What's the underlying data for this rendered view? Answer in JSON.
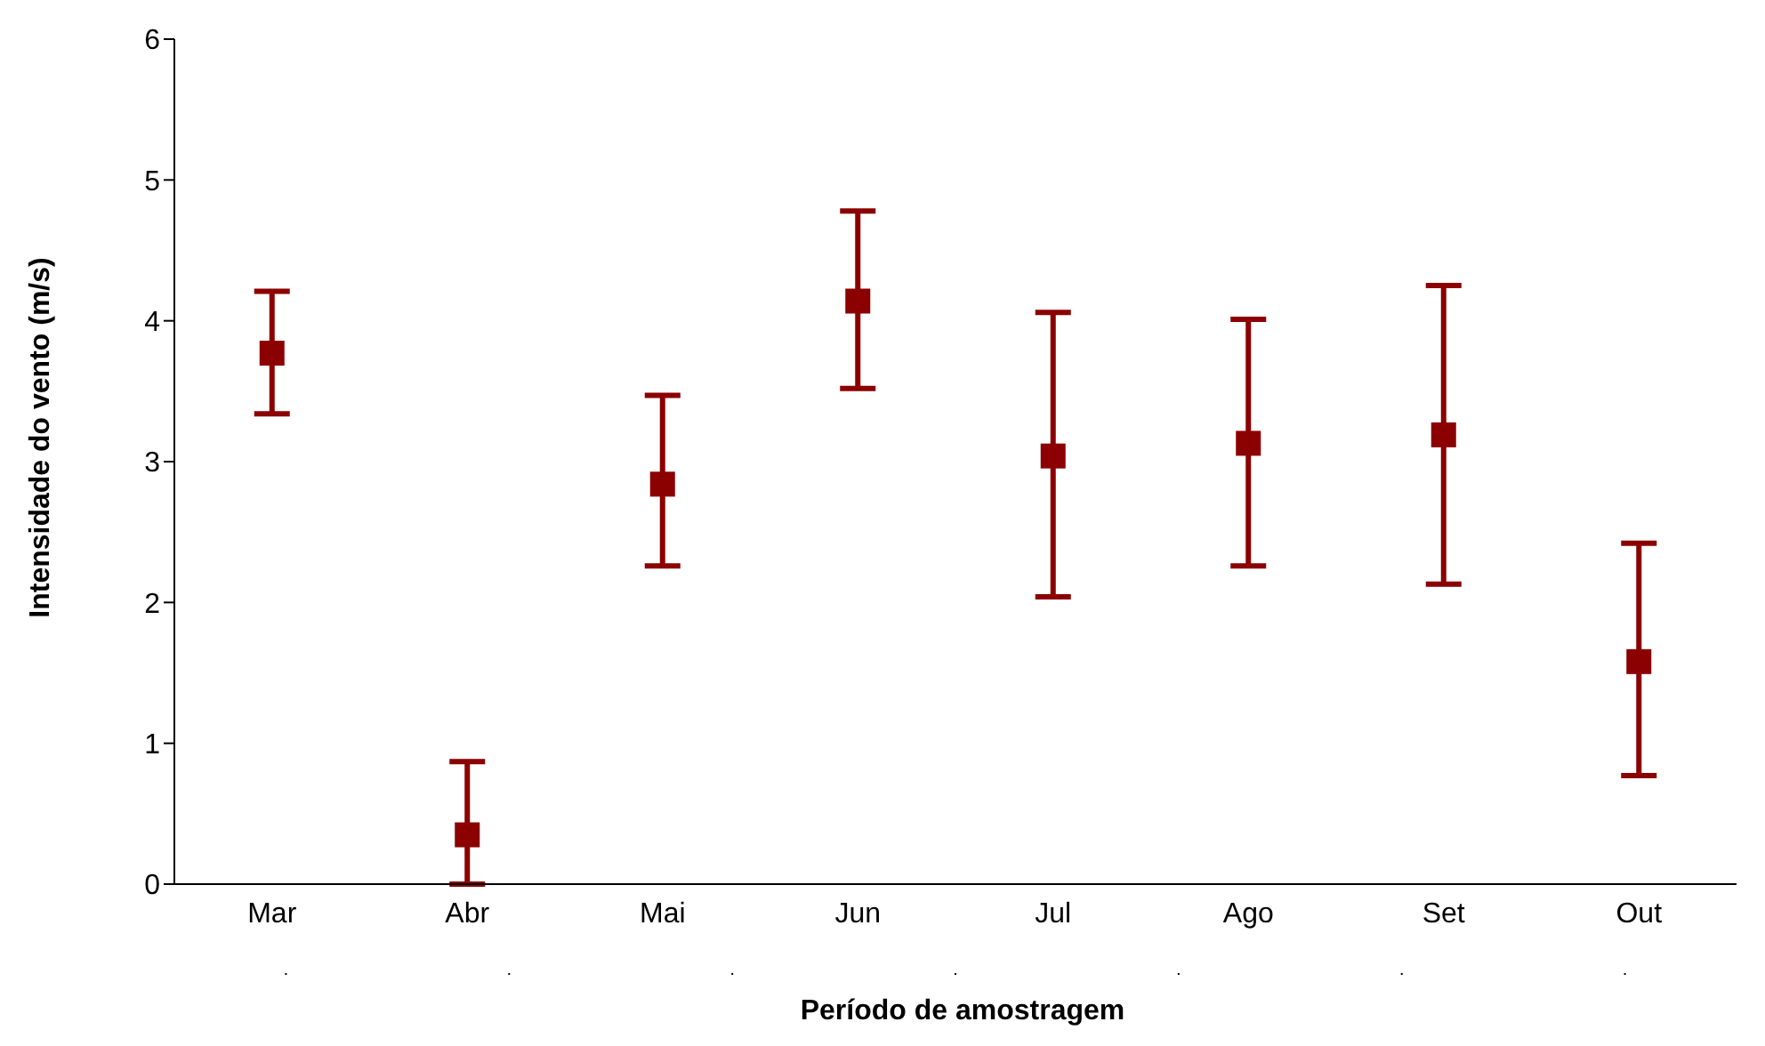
{
  "chart_data": {
    "type": "scatter",
    "xlabel": "Período de amostragem",
    "ylabel": "Intensidade do vento (m/s)",
    "categories": [
      "Mar",
      "Abr",
      "Mai",
      "Jun",
      "Jul",
      "Ago",
      "Set",
      "Out"
    ],
    "series": [
      {
        "color": "#8b0000",
        "values": [
          3.77,
          0.35,
          2.84,
          4.14,
          3.04,
          3.13,
          3.19,
          1.58
        ],
        "errors": [
          [
            3.34,
            4.21
          ],
          [
            0,
            0.87
          ],
          [
            2.26,
            3.47
          ],
          [
            3.52,
            4.78
          ],
          [
            2.04,
            4.06
          ],
          [
            2.26,
            4.01
          ],
          [
            2.13,
            4.25
          ],
          [
            0.77,
            2.42
          ]
        ]
      }
    ],
    "ylim": [
      0,
      6
    ],
    "yticks": [
      0,
      1,
      2,
      3,
      4,
      5,
      6
    ],
    "grid": false,
    "marker": "square"
  }
}
